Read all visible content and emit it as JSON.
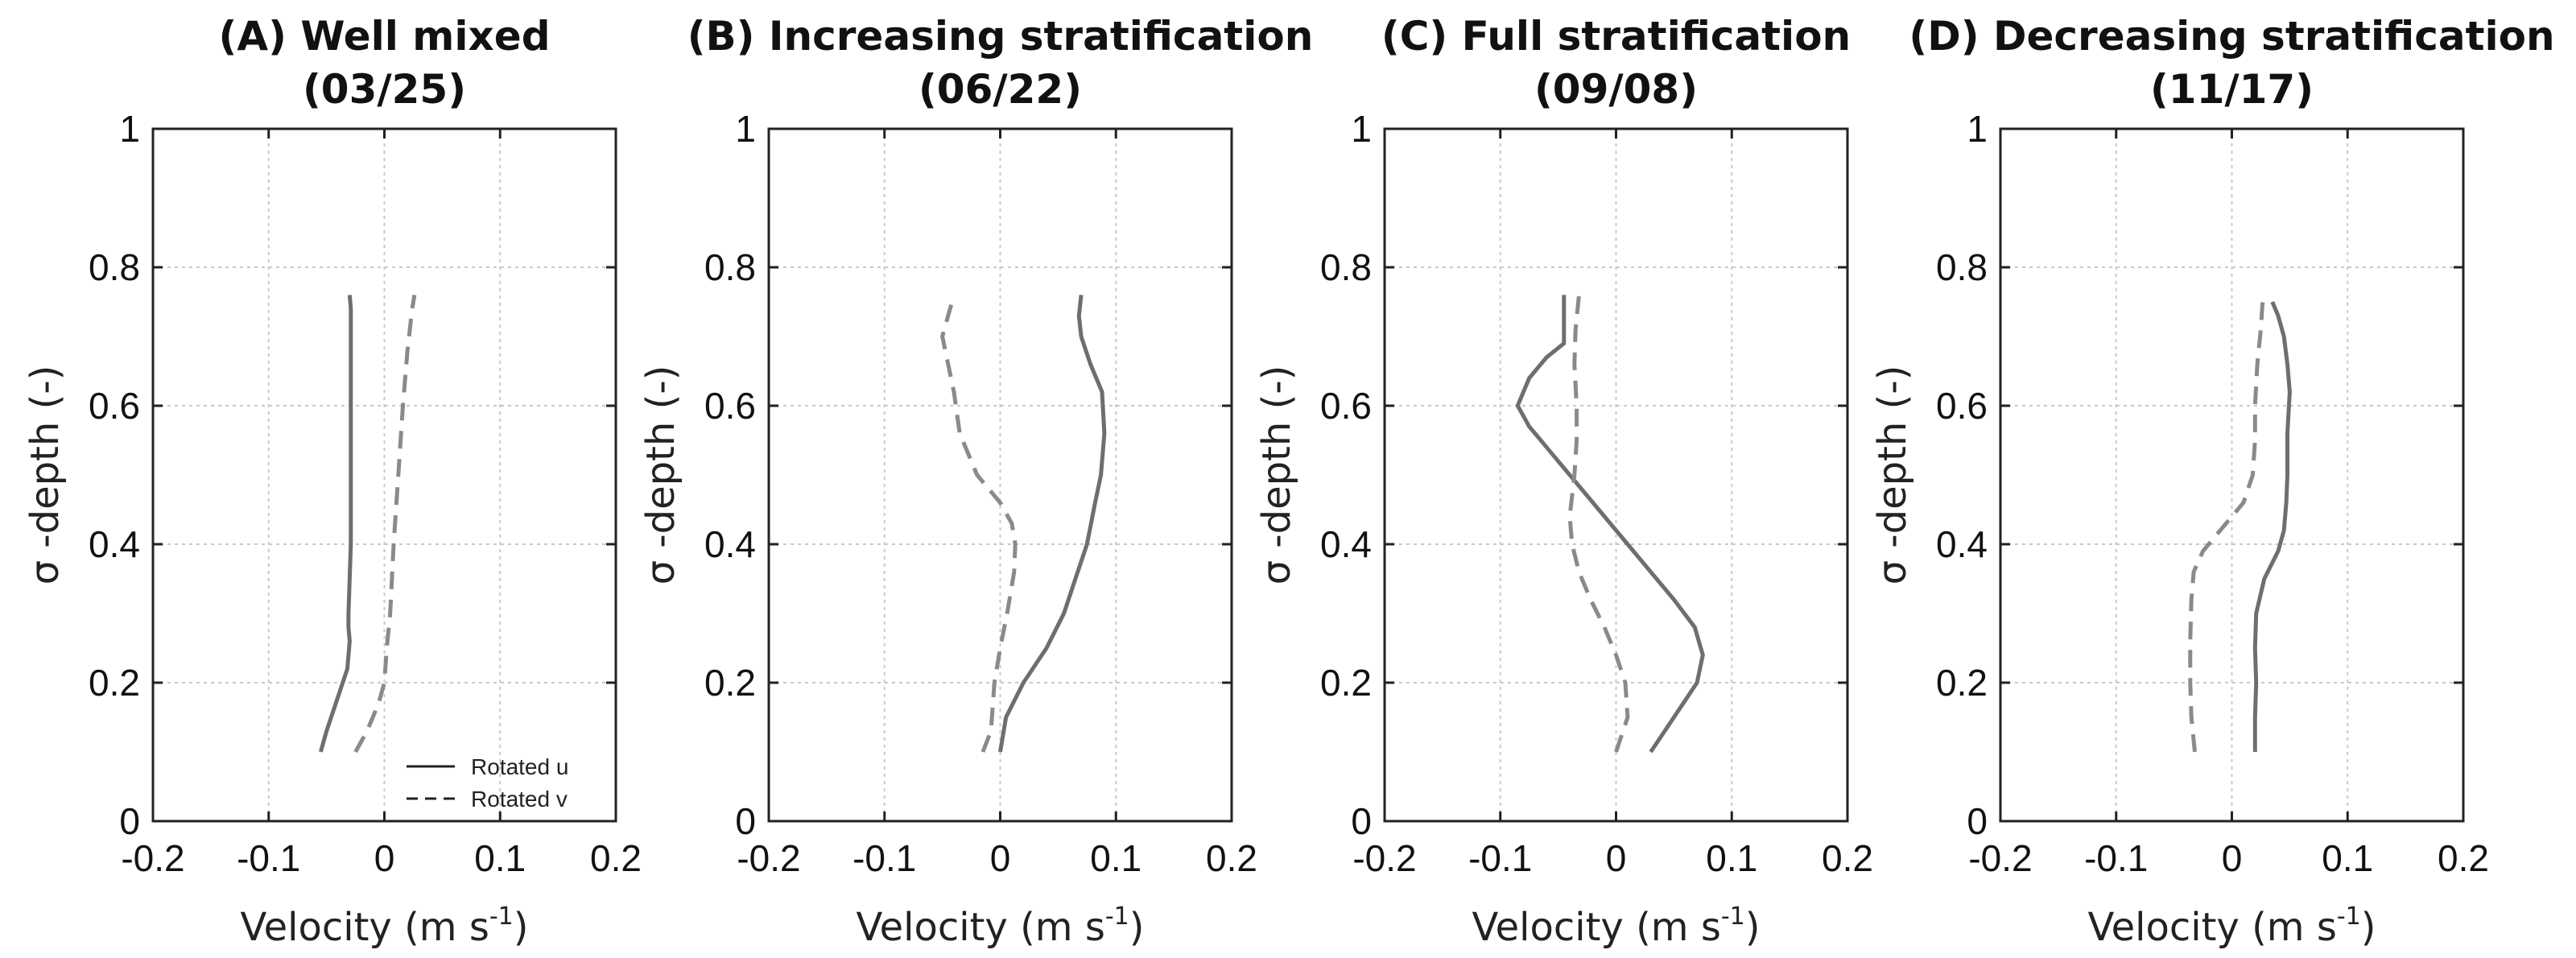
{
  "chart_data": [
    {
      "type": "line",
      "title": "(A) Well mixed",
      "subtitle": "(03/25)",
      "xlabel": "Velocity (m s",
      "xlabel_sup": "-1",
      "xlabel_end": ")",
      "ylabel": "σ -depth (-)",
      "xlim": [
        -0.2,
        0.2
      ],
      "ylim": [
        0,
        1
      ],
      "xticks": [
        "-0.2",
        "-0.1",
        "0",
        "0.1",
        "0.2"
      ],
      "yticks": [
        "0",
        "0.2",
        "0.4",
        "0.6",
        "0.8",
        "1"
      ],
      "grid": true,
      "legend": {
        "location": "bottom-right",
        "entries": [
          "Rotated u",
          "Rotated v"
        ]
      },
      "series": [
        {
          "name": "Rotated u",
          "style": "solid",
          "x": [
            -0.055,
            -0.05,
            -0.04,
            -0.032,
            -0.03,
            -0.031,
            -0.031,
            -0.029,
            -0.029,
            -0.029,
            -0.029,
            -0.029,
            -0.03
          ],
          "y": [
            0.1,
            0.13,
            0.18,
            0.22,
            0.26,
            0.28,
            0.3,
            0.4,
            0.5,
            0.6,
            0.68,
            0.74,
            0.76
          ]
        },
        {
          "name": "Rotated v",
          "style": "dashed",
          "x": [
            -0.025,
            -0.015,
            -0.005,
            0.0,
            0.002,
            0.005,
            0.008,
            0.012,
            0.016,
            0.02,
            0.024,
            0.026
          ],
          "y": [
            0.1,
            0.13,
            0.17,
            0.2,
            0.25,
            0.3,
            0.4,
            0.5,
            0.6,
            0.68,
            0.74,
            0.76
          ]
        }
      ]
    },
    {
      "type": "line",
      "title": "(B) Increasing stratification",
      "subtitle": "(06/22)",
      "xlabel": "Velocity (m s",
      "xlabel_sup": "-1",
      "xlabel_end": ")",
      "ylabel": "σ -depth (-)",
      "xlim": [
        -0.2,
        0.2
      ],
      "ylim": [
        0,
        1
      ],
      "xticks": [
        "-0.2",
        "-0.1",
        "0",
        "0.1",
        "0.2"
      ],
      "yticks": [
        "0",
        "0.2",
        "0.4",
        "0.6",
        "0.8",
        "1"
      ],
      "grid": true,
      "series": [
        {
          "name": "Rotated u",
          "style": "solid",
          "x": [
            0.0,
            0.005,
            0.02,
            0.04,
            0.055,
            0.065,
            0.075,
            0.082,
            0.087,
            0.09,
            0.088,
            0.078,
            0.07,
            0.068,
            0.07
          ],
          "y": [
            0.1,
            0.15,
            0.2,
            0.25,
            0.3,
            0.35,
            0.4,
            0.46,
            0.5,
            0.56,
            0.62,
            0.66,
            0.7,
            0.73,
            0.76
          ]
        },
        {
          "name": "Rotated v",
          "style": "dashed",
          "x": [
            -0.015,
            -0.008,
            -0.005,
            0.0,
            0.006,
            0.012,
            0.013,
            0.01,
            0.0,
            -0.02,
            -0.035,
            -0.04,
            -0.045,
            -0.05,
            -0.045,
            -0.04
          ],
          "y": [
            0.1,
            0.13,
            0.2,
            0.25,
            0.3,
            0.36,
            0.4,
            0.43,
            0.46,
            0.5,
            0.56,
            0.62,
            0.66,
            0.7,
            0.73,
            0.76
          ]
        }
      ]
    },
    {
      "type": "line",
      "title": "(C) Full stratification",
      "subtitle": "(09/08)",
      "xlabel": "Velocity (m s",
      "xlabel_sup": "-1",
      "xlabel_end": ")",
      "ylabel": "σ -depth (-)",
      "xlim": [
        -0.2,
        0.2
      ],
      "ylim": [
        0,
        1
      ],
      "xticks": [
        "-0.2",
        "-0.1",
        "0",
        "0.1",
        "0.2"
      ],
      "yticks": [
        "0",
        "0.2",
        "0.4",
        "0.6",
        "0.8",
        "1"
      ],
      "grid": true,
      "series": [
        {
          "name": "Rotated u",
          "style": "solid",
          "x": [
            0.03,
            0.05,
            0.07,
            0.075,
            0.068,
            0.05,
            0.03,
            0.005,
            -0.02,
            -0.05,
            -0.075,
            -0.085,
            -0.075,
            -0.06,
            -0.045,
            -0.045,
            -0.045
          ],
          "y": [
            0.1,
            0.15,
            0.2,
            0.24,
            0.28,
            0.32,
            0.36,
            0.41,
            0.46,
            0.52,
            0.57,
            0.6,
            0.64,
            0.67,
            0.69,
            0.73,
            0.76
          ]
        },
        {
          "name": "Rotated v",
          "style": "dashed",
          "x": [
            0.0,
            0.01,
            0.008,
            0.0,
            -0.01,
            -0.022,
            -0.032,
            -0.038,
            -0.04,
            -0.036,
            -0.034,
            -0.034,
            -0.036,
            -0.035,
            -0.032
          ],
          "y": [
            0.1,
            0.15,
            0.2,
            0.24,
            0.28,
            0.32,
            0.36,
            0.4,
            0.44,
            0.5,
            0.55,
            0.6,
            0.66,
            0.71,
            0.76
          ]
        }
      ]
    },
    {
      "type": "line",
      "title": "(D) Decreasing stratification",
      "subtitle": "(11/17)",
      "xlabel": "Velocity (m s",
      "xlabel_sup": "-1",
      "xlabel_end": ")",
      "ylabel": "σ -depth (-)",
      "xlim": [
        -0.2,
        0.2
      ],
      "ylim": [
        0,
        1
      ],
      "xticks": [
        "-0.2",
        "-0.1",
        "0",
        "0.1",
        "0.2"
      ],
      "yticks": [
        "0",
        "0.2",
        "0.4",
        "0.6",
        "0.8",
        "1"
      ],
      "grid": true,
      "series": [
        {
          "name": "Rotated u",
          "style": "solid",
          "x": [
            0.02,
            0.02,
            0.021,
            0.02,
            0.021,
            0.028,
            0.04,
            0.045,
            0.047,
            0.048,
            0.048,
            0.05,
            0.048,
            0.045,
            0.04,
            0.035
          ],
          "y": [
            0.1,
            0.15,
            0.2,
            0.25,
            0.3,
            0.35,
            0.39,
            0.42,
            0.46,
            0.5,
            0.56,
            0.62,
            0.66,
            0.7,
            0.73,
            0.75
          ]
        },
        {
          "name": "Rotated v",
          "style": "dashed",
          "x": [
            -0.032,
            -0.035,
            -0.036,
            -0.036,
            -0.035,
            -0.033,
            -0.025,
            -0.01,
            0.01,
            0.018,
            0.02,
            0.02,
            0.022,
            0.025,
            0.027
          ],
          "y": [
            0.1,
            0.15,
            0.2,
            0.26,
            0.32,
            0.36,
            0.39,
            0.42,
            0.46,
            0.5,
            0.55,
            0.6,
            0.66,
            0.71,
            0.76
          ]
        }
      ]
    }
  ]
}
